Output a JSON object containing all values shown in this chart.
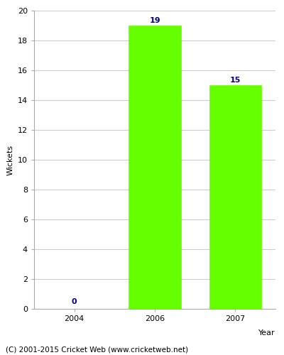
{
  "categories": [
    "2004",
    "2006",
    "2007"
  ],
  "values": [
    0,
    19,
    15
  ],
  "bar_color": "#66ff00",
  "bar_edge_color": "#66ff00",
  "value_label_color": "#000080",
  "xlabel": "Year",
  "ylabel": "Wickets",
  "ylim": [
    0,
    20
  ],
  "yticks": [
    0,
    2,
    4,
    6,
    8,
    10,
    12,
    14,
    16,
    18,
    20
  ],
  "footer": "(C) 2001-2015 Cricket Web (www.cricketweb.net)",
  "bar_width": 0.65,
  "grid_color": "#cccccc",
  "background_color": "#ffffff",
  "value_fontsize": 8,
  "axis_fontsize": 8,
  "label_fontsize": 8,
  "footer_fontsize": 7.5
}
